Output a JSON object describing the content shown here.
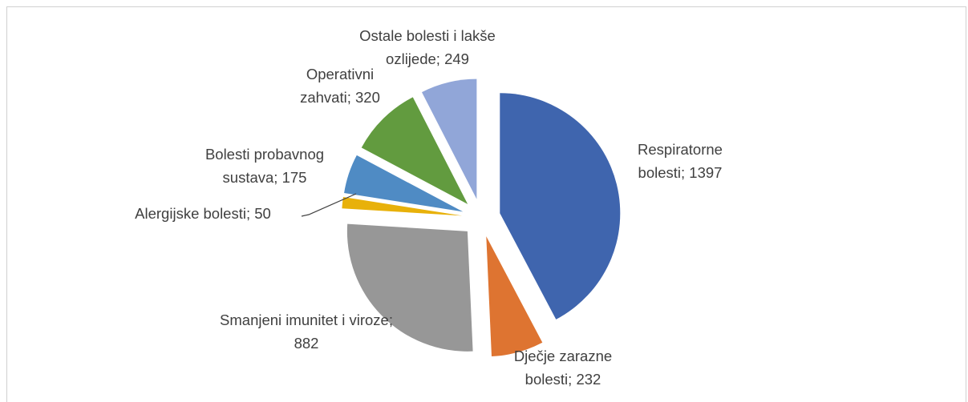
{
  "chart_data": {
    "type": "pie",
    "categories": [
      "Respiratorne bolesti",
      "Dječje zarazne bolesti",
      "Smanjeni imunitet i viroze",
      "Alergijske bolesti",
      "Bolesti probavnog sustava",
      "Operativni zahvati",
      "Ostale bolesti i lakše ozlijede"
    ],
    "values": [
      1397,
      232,
      882,
      50,
      175,
      320,
      249
    ],
    "colors": [
      "#3f65ae",
      "#de7431",
      "#979797",
      "#e8b10a",
      "#4f8bc4",
      "#629b3f",
      "#91a6d8"
    ]
  }
}
